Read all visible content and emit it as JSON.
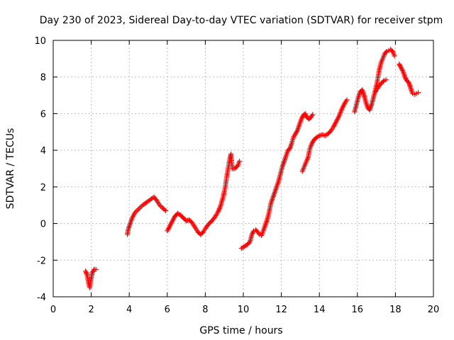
{
  "chart_data": {
    "type": "scatter",
    "title": "Day 230 of 2023, Sidereal Day-to-day VTEC variation (SDTVAR) for receiver stpm",
    "xlabel": "GPS time / hours",
    "ylabel": "SDTVAR / TECUs",
    "xlim": [
      0,
      20
    ],
    "ylim": [
      -4,
      10
    ],
    "xticks": [
      "0",
      "2",
      "4",
      "6",
      "8",
      "10",
      "12",
      "14",
      "16",
      "18",
      "20"
    ],
    "yticks": [
      "-4",
      "-2",
      "0",
      "2",
      "4",
      "6",
      "8",
      "10"
    ],
    "grid": true,
    "marker": "plus",
    "color": "#ff0000",
    "series": [
      {
        "name": "SDTVAR",
        "segments": [
          [
            [
              1.7,
              -2.6
            ],
            [
              1.78,
              -2.8
            ],
            [
              1.85,
              -3.2
            ],
            [
              1.92,
              -3.5
            ],
            [
              1.98,
              -3.1
            ],
            [
              2.05,
              -2.7
            ],
            [
              2.15,
              -2.5
            ],
            [
              2.25,
              -2.5
            ]
          ],
          [
            [
              3.9,
              -0.6
            ],
            [
              3.95,
              -0.3
            ],
            [
              4.05,
              0.0
            ],
            [
              4.15,
              0.3
            ],
            [
              4.3,
              0.6
            ],
            [
              4.5,
              0.8
            ],
            [
              4.7,
              1.0
            ],
            [
              4.9,
              1.15
            ],
            [
              5.1,
              1.3
            ],
            [
              5.3,
              1.45
            ],
            [
              5.45,
              1.25
            ],
            [
              5.6,
              1.0
            ],
            [
              5.8,
              0.8
            ],
            [
              5.92,
              0.7
            ]
          ],
          [
            [
              6.0,
              -0.4
            ],
            [
              6.1,
              -0.2
            ],
            [
              6.25,
              0.1
            ],
            [
              6.4,
              0.4
            ],
            [
              6.55,
              0.55
            ],
            [
              6.7,
              0.45
            ],
            [
              6.85,
              0.3
            ],
            [
              7.0,
              0.15
            ],
            [
              7.15,
              0.2
            ],
            [
              7.3,
              0.05
            ],
            [
              7.45,
              -0.2
            ],
            [
              7.6,
              -0.45
            ],
            [
              7.75,
              -0.6
            ],
            [
              7.9,
              -0.45
            ],
            [
              8.05,
              -0.2
            ],
            [
              8.2,
              0.0
            ],
            [
              8.35,
              0.15
            ],
            [
              8.5,
              0.35
            ],
            [
              8.65,
              0.6
            ],
            [
              8.8,
              0.95
            ],
            [
              8.95,
              1.5
            ],
            [
              9.05,
              2.0
            ],
            [
              9.12,
              2.5
            ],
            [
              9.2,
              3.0
            ],
            [
              9.28,
              3.5
            ],
            [
              9.35,
              3.8
            ],
            [
              9.42,
              3.0
            ],
            [
              9.55,
              3.0
            ],
            [
              9.7,
              3.15
            ],
            [
              9.8,
              3.4
            ]
          ],
          [
            [
              9.9,
              -1.35
            ],
            [
              10.05,
              -1.25
            ],
            [
              10.2,
              -1.15
            ],
            [
              10.35,
              -1.0
            ],
            [
              10.45,
              -0.6
            ],
            [
              10.55,
              -0.4
            ],
            [
              10.65,
              -0.35
            ],
            [
              10.75,
              -0.45
            ],
            [
              10.85,
              -0.6
            ],
            [
              10.95,
              -0.65
            ],
            [
              11.05,
              -0.4
            ],
            [
              11.15,
              -0.1
            ],
            [
              11.25,
              0.2
            ],
            [
              11.35,
              0.6
            ],
            [
              11.45,
              1.1
            ],
            [
              11.55,
              1.4
            ],
            [
              11.65,
              1.7
            ],
            [
              11.75,
              2.0
            ],
            [
              11.85,
              2.3
            ],
            [
              11.95,
              2.7
            ],
            [
              12.05,
              3.1
            ],
            [
              12.15,
              3.4
            ],
            [
              12.25,
              3.7
            ],
            [
              12.35,
              4.0
            ],
            [
              12.45,
              4.1
            ],
            [
              12.55,
              4.4
            ],
            [
              12.65,
              4.75
            ],
            [
              12.75,
              4.9
            ],
            [
              12.85,
              5.1
            ],
            [
              12.95,
              5.4
            ],
            [
              13.05,
              5.7
            ],
            [
              13.15,
              5.9
            ],
            [
              13.25,
              6.0
            ],
            [
              13.35,
              5.8
            ],
            [
              13.45,
              5.7
            ],
            [
              13.55,
              5.8
            ],
            [
              13.65,
              5.95
            ]
          ],
          [
            [
              13.1,
              2.85
            ],
            [
              13.2,
              3.1
            ],
            [
              13.3,
              3.35
            ],
            [
              13.4,
              3.6
            ],
            [
              13.5,
              4.1
            ],
            [
              13.6,
              4.35
            ],
            [
              13.7,
              4.55
            ],
            [
              13.85,
              4.7
            ],
            [
              14.0,
              4.8
            ],
            [
              14.15,
              4.85
            ],
            [
              14.3,
              4.8
            ],
            [
              14.45,
              4.9
            ],
            [
              14.6,
              5.05
            ],
            [
              14.75,
              5.3
            ],
            [
              14.9,
              5.6
            ],
            [
              15.05,
              5.9
            ],
            [
              15.2,
              6.3
            ],
            [
              15.35,
              6.6
            ],
            [
              15.45,
              6.75
            ]
          ],
          [
            [
              15.85,
              6.1
            ],
            [
              15.95,
              6.5
            ],
            [
              16.05,
              6.9
            ],
            [
              16.15,
              7.2
            ],
            [
              16.25,
              7.3
            ],
            [
              16.35,
              7.0
            ],
            [
              16.45,
              6.6
            ],
            [
              16.55,
              6.3
            ],
            [
              16.65,
              6.2
            ],
            [
              16.75,
              6.5
            ],
            [
              16.85,
              6.9
            ],
            [
              16.95,
              7.3
            ],
            [
              17.05,
              7.8
            ],
            [
              17.15,
              8.4
            ],
            [
              17.25,
              8.8
            ],
            [
              17.35,
              9.05
            ],
            [
              17.45,
              9.3
            ],
            [
              17.55,
              9.4
            ],
            [
              17.65,
              9.45
            ],
            [
              17.75,
              9.5
            ],
            [
              17.85,
              9.4
            ],
            [
              17.95,
              9.15
            ]
          ],
          [
            [
              16.95,
              7.2
            ],
            [
              17.1,
              7.45
            ],
            [
              17.25,
              7.65
            ],
            [
              17.4,
              7.8
            ],
            [
              17.5,
              7.85
            ]
          ],
          [
            [
              18.2,
              8.7
            ],
            [
              18.3,
              8.5
            ],
            [
              18.4,
              8.3
            ],
            [
              18.5,
              8.0
            ],
            [
              18.6,
              7.8
            ],
            [
              18.7,
              7.7
            ],
            [
              18.8,
              7.4
            ],
            [
              18.9,
              7.1
            ],
            [
              19.0,
              7.05
            ],
            [
              19.1,
              7.1
            ],
            [
              19.2,
              7.15
            ]
          ]
        ]
      }
    ]
  }
}
